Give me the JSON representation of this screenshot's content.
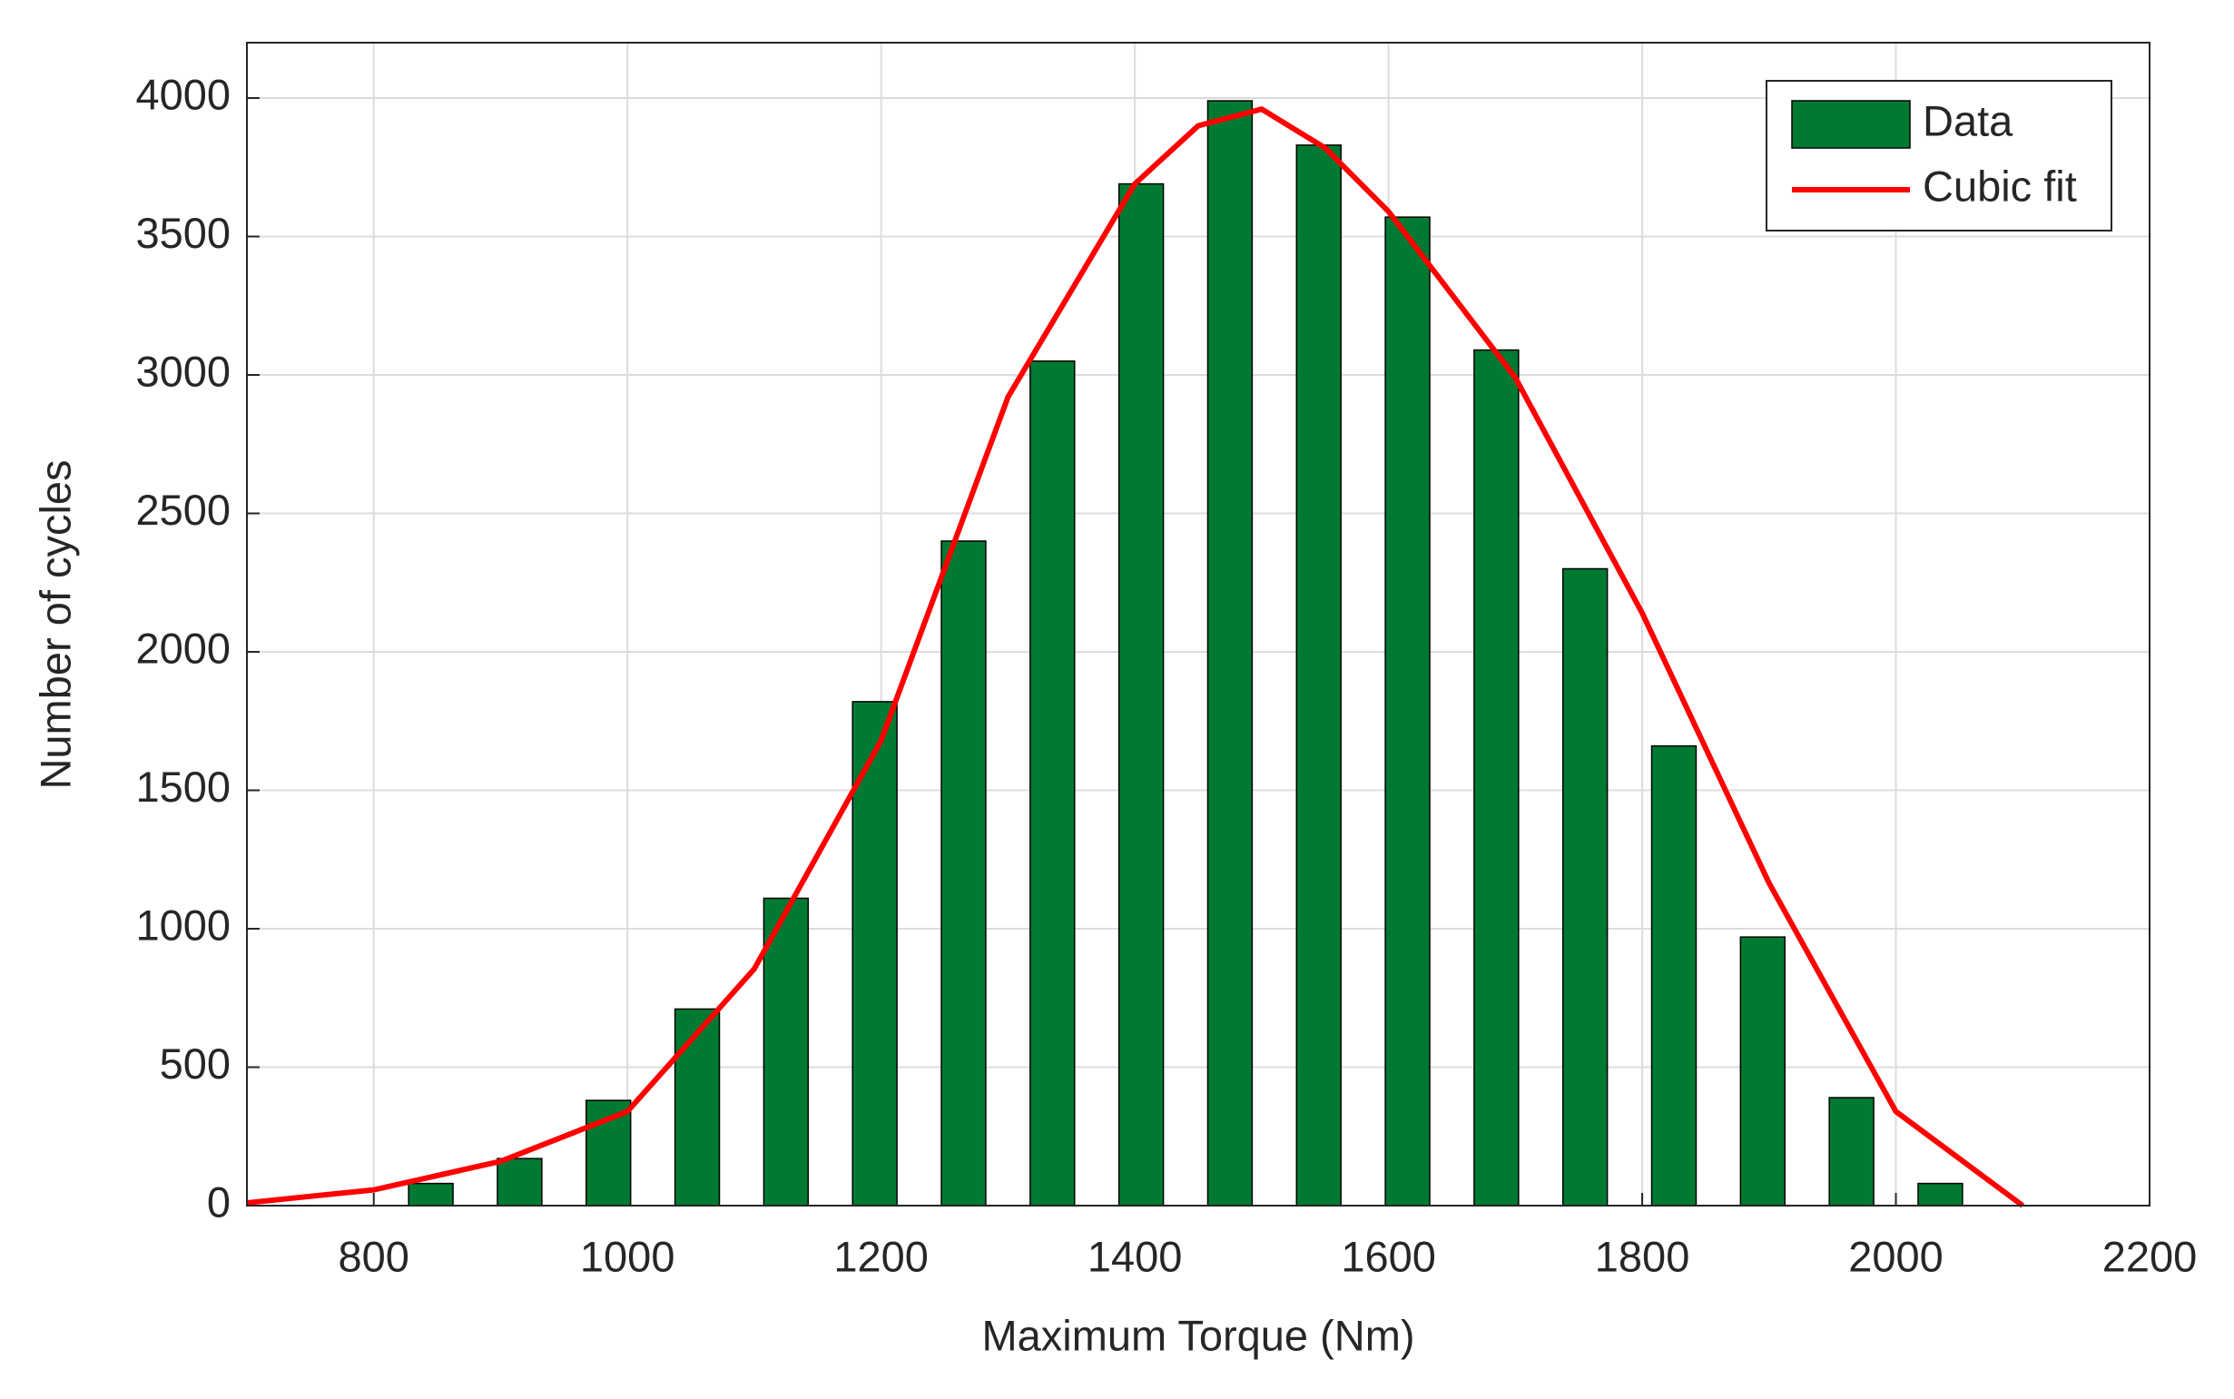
{
  "chart_data": {
    "type": "bar",
    "x_label": "Maximum Torque (Nm)",
    "y_label": "Number of cycles",
    "x": [
      845,
      915,
      985,
      1055,
      1125,
      1195,
      1265,
      1335,
      1405,
      1475,
      1545,
      1615,
      1685,
      1755,
      1825,
      1895,
      1965,
      2035
    ],
    "series": [
      {
        "name": "Data",
        "type": "bar",
        "color": "#007a33",
        "values": [
          80,
          170,
          380,
          710,
          1110,
          1820,
          2400,
          3050,
          3690,
          3990,
          3830,
          3570,
          3090,
          2300,
          1660,
          970,
          390,
          80
        ]
      },
      {
        "name": "Cubic fit",
        "type": "line",
        "color": "#ff0000",
        "x": [
          700,
          800,
          900,
          1000,
          1100,
          1200,
          1300,
          1400,
          1450,
          1500,
          1550,
          1600,
          1700,
          1800,
          1900,
          2000,
          2100
        ],
        "values": [
          10,
          57,
          160,
          340,
          855,
          1680,
          2920,
          3690,
          3900,
          3960,
          3820,
          3590,
          2990,
          2140,
          1165,
          340,
          0
        ]
      }
    ],
    "xlim": [
      700,
      2200
    ],
    "xticks": [
      800,
      1000,
      1200,
      1400,
      1600,
      1800,
      2000,
      2200
    ],
    "ylim": [
      0,
      4200
    ],
    "yticks": [
      0,
      500,
      1000,
      1500,
      2000,
      2500,
      3000,
      3500,
      4000
    ],
    "grid": true,
    "legend": "top-right"
  }
}
